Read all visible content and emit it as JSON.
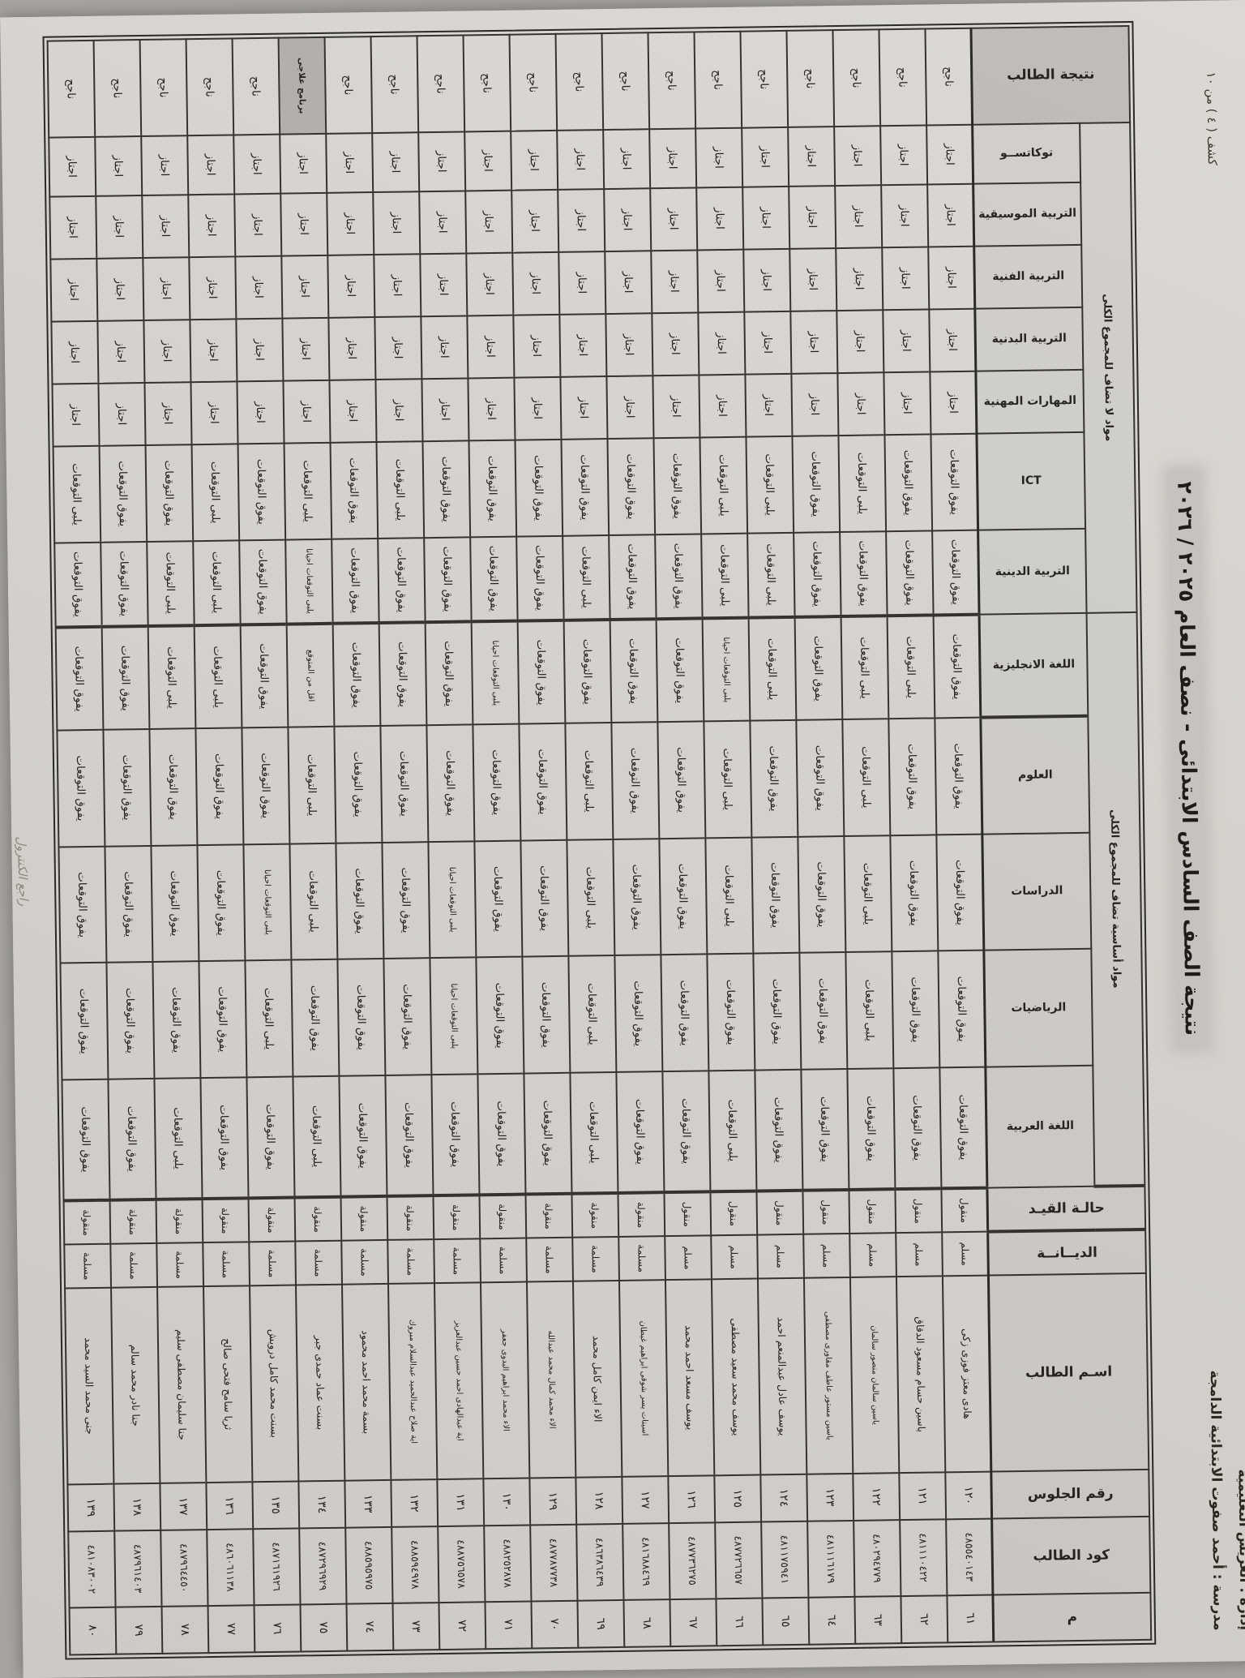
{
  "page": {
    "sheet_label": "كشف ( ٤ ) من ١٠",
    "admin_line": "إدارة : العريش التعليمية",
    "school_line": "مدرسة : أحمد صفوت الابتدائية الدامجة",
    "title": "نتيجة الصف السادس الابتدائى - نصف العام ٢٠٢٥ / ٢٠٢٦",
    "margin_note": "راجع الكنترول"
  },
  "table": {
    "groups": {
      "basic": "مواد أساسية تضاف للمجموع الكلى",
      "non_added": "مواد لا تضاف للمجموع الكلى"
    },
    "headers": {
      "m": "م",
      "code": "كود الطالب",
      "seat": "رقم الجلوس",
      "name": "اسـم الطالب",
      "religion": "الديــانــة",
      "status": "حالـة القيـد",
      "arabic": "اللغة العربية",
      "math": "الرياضيات",
      "studies": "الدراسات",
      "science": "العلوم",
      "english": "اللغة الانجليزية",
      "religious": "التربية الدينية",
      "ict": "ICT",
      "vocational": "المهارات المهنية",
      "physical": "التربية البدنية",
      "art": "التربية الفنية",
      "music": "التربية الموسيقية",
      "tokkatsu": "توكاتســو",
      "result": "نتيجة الطالب"
    }
  },
  "students": [
    {
      "m": "٦١",
      "code": "٤٨٥٥٤٠١٤٣",
      "seat": "١٢٠",
      "name": "هادى معتز فوزى زكى",
      "religion": "مسلم",
      "status": "منقول",
      "arabic": "يفوق التوقعات",
      "math": "يفوق التوقعات",
      "studies": "يفوق التوقعات",
      "science": "يفوق التوقعات",
      "english": "يفوق التوقعات",
      "religious": "يفوق التوقعات",
      "ict": "يفوق التوقعات",
      "vocational": "اجتاز",
      "physical": "اجتاز",
      "art": "اجتاز",
      "music": "اجتاز",
      "tokkatsu": "اجتاز",
      "result": "ناجح"
    },
    {
      "m": "٦٢",
      "code": "٤٨١١١٠٤٢٢",
      "seat": "١٢١",
      "name": "ياسين حسام مسعود الدقاق",
      "religion": "مسلم",
      "status": "منقول",
      "arabic": "يفوق التوقعات",
      "math": "يفوق التوقعات",
      "studies": "يفوق التوقعات",
      "science": "يفوق التوقعات",
      "english": "يلبى التوقعات",
      "religious": "يفوق التوقعات",
      "ict": "يفوق التوقعات",
      "vocational": "اجتاز",
      "physical": "اجتاز",
      "art": "اجتاز",
      "music": "اجتاز",
      "tokkatsu": "اجتاز",
      "result": "ناجح"
    },
    {
      "m": "٦٣",
      "code": "٤٨٠٢٩٤٧٧٩",
      "seat": "١٢٢",
      "name": "ياسين سالمان منصور سالمان",
      "religion": "مسلم",
      "status": "منقول",
      "arabic": "يفوق التوقعات",
      "math": "يلبى التوقعات",
      "studies": "يلبى التوقعات",
      "science": "يلبى التوقعات",
      "english": "يلبى التوقعات",
      "religious": "يفوق التوقعات",
      "ict": "يلبى التوقعات",
      "vocational": "اجتاز",
      "physical": "اجتاز",
      "art": "اجتاز",
      "music": "اجتاز",
      "tokkatsu": "اجتاز",
      "result": "ناجح"
    },
    {
      "m": "٦٤",
      "code": "٤٨١١١٦١٧٩",
      "seat": "١٢٣",
      "name": "ياسين مستور عاطف مقاورى مصطفى",
      "religion": "مسلم",
      "status": "منقول",
      "arabic": "يفوق التوقعات",
      "math": "يفوق التوقعات",
      "studies": "يفوق التوقعات",
      "science": "يفوق التوقعات",
      "english": "يفوق التوقعات",
      "religious": "يفوق التوقعات",
      "ict": "يفوق التوقعات",
      "vocational": "اجتاز",
      "physical": "اجتاز",
      "art": "اجتاز",
      "music": "اجتاز",
      "tokkatsu": "اجتاز",
      "result": "ناجح"
    },
    {
      "m": "٦٥",
      "code": "٤٨١١٧٥٩٤١",
      "seat": "١٢٤",
      "name": "يوسف عادل عبدالمنعم احمد",
      "religion": "مسلم",
      "status": "منقول",
      "arabic": "يفوق التوقعات",
      "math": "يفوق التوقعات",
      "studies": "يفوق التوقعات",
      "science": "يفوق التوقعات",
      "english": "يلبى التوقعات",
      "religious": "يلبى التوقعات",
      "ict": "يلبى التوقعات",
      "vocational": "اجتاز",
      "physical": "اجتاز",
      "art": "اجتاز",
      "music": "اجتاز",
      "tokkatsu": "اجتاز",
      "result": "ناجح"
    },
    {
      "m": "٦٦",
      "code": "٤٨٧٧٢٦٦٥٧",
      "seat": "١٢٥",
      "name": "يوسف محمد سعيد مصطفى",
      "religion": "مسلم",
      "status": "منقول",
      "arabic": "يلبى التوقعات",
      "math": "يفوق التوقعات",
      "studies": "يلبى التوقعات",
      "science": "يلبى التوقعات",
      "english": "يلبى التوقعات احيانا",
      "religious": "يلبى التوقعات",
      "ict": "يلبى التوقعات",
      "vocational": "اجتاز",
      "physical": "اجتاز",
      "art": "اجتاز",
      "music": "اجتاز",
      "tokkatsu": "اجتاز",
      "result": "ناجح"
    },
    {
      "m": "٦٧",
      "code": "٤٨٧٧٣٦٢٧٥",
      "seat": "١٢٦",
      "name": "يوسف مسعد احمد محمد",
      "religion": "مسلم",
      "status": "منقول",
      "arabic": "يفوق التوقعات",
      "math": "يفوق التوقعات",
      "studies": "يفوق التوقعات",
      "science": "يفوق التوقعات",
      "english": "يفوق التوقعات",
      "religious": "يفوق التوقعات",
      "ict": "يفوق التوقعات",
      "vocational": "اجتاز",
      "physical": "اجتاز",
      "art": "اجتاز",
      "music": "اجتاز",
      "tokkatsu": "اجتاز",
      "result": "ناجح"
    },
    {
      "m": "٦٨",
      "code": "٤٨١٦٨٨٤٦٩",
      "seat": "١٢٧",
      "name": "اسينات يسر شوقى ابراهيم غيطان",
      "religion": "مسلمة",
      "status": "منقولة",
      "arabic": "يفوق التوقعات",
      "math": "يفوق التوقعات",
      "studies": "يفوق التوقعات",
      "science": "يفوق التوقعات",
      "english": "يفوق التوقعات",
      "religious": "يفوق التوقعات",
      "ict": "يفوق التوقعات",
      "vocational": "اجتاز",
      "physical": "اجتاز",
      "art": "اجتاز",
      "music": "اجتاز",
      "tokkatsu": "اجتاز",
      "result": "ناجح"
    },
    {
      "m": "٦٩",
      "code": "٤٨٦٣٨٦٤٣٩",
      "seat": "١٢٨",
      "name": "الاء ايمن كامل محمد",
      "religion": "مسلمة",
      "status": "منقولة",
      "arabic": "يلبى التوقعات",
      "math": "يلبى التوقعات",
      "studies": "يلبى التوقعات",
      "science": "يلبى التوقعات",
      "english": "يفوق التوقعات",
      "religious": "يلبى التوقعات",
      "ict": "يفوق التوقعات",
      "vocational": "اجتاز",
      "physical": "اجتاز",
      "art": "اجتاز",
      "music": "اجتاز",
      "tokkatsu": "اجتاز",
      "result": "ناجح"
    },
    {
      "m": "٧٠",
      "code": "٤٨٧٧٨٧٧٣٨",
      "seat": "١٢٩",
      "name": "الاء محمد كمال محمد عبدالله",
      "religion": "مسلمة",
      "status": "منقولة",
      "arabic": "يفوق التوقعات",
      "math": "يفوق التوقعات",
      "studies": "يفوق التوقعات",
      "science": "يفوق التوقعات",
      "english": "يفوق التوقعات",
      "religious": "يفوق التوقعات",
      "ict": "يفوق التوقعات",
      "vocational": "اجتاز",
      "physical": "اجتاز",
      "art": "اجتاز",
      "music": "اجتاز",
      "tokkatsu": "اجتاز",
      "result": "ناجح"
    },
    {
      "m": "٧١",
      "code": "٤٨٨٢٥٢٨٧٨",
      "seat": "١٣٠",
      "name": "الاء محمد ابراهيم البدوى جعفر",
      "religion": "مسلمة",
      "status": "منقولة",
      "arabic": "يفوق التوقعات",
      "math": "يفوق التوقعات",
      "studies": "يفوق التوقعات",
      "science": "يفوق التوقعات",
      "english": "يلبى التوقعات احيانا",
      "religious": "يفوق التوقعات",
      "ict": "يفوق التوقعات",
      "vocational": "اجتاز",
      "physical": "اجتاز",
      "art": "اجتاز",
      "music": "اجتاز",
      "tokkatsu": "اجتاز",
      "result": "ناجح"
    },
    {
      "m": "٧٢",
      "code": "٤٨٨٧٥٦٥٧٨",
      "seat": "١٣١",
      "name": "اية عبدالهادى احمد حسين عبدالعزيز",
      "religion": "مسلمة",
      "status": "منقولة",
      "arabic": "يفوق التوقعات",
      "math": "يلبى التوقعات احيانا",
      "studies": "يلبى التوقعات احيانا",
      "science": "يفوق التوقعات",
      "english": "يفوق التوقعات",
      "religious": "يفوق التوقعات",
      "ict": "يفوق التوقعات",
      "vocational": "اجتاز",
      "physical": "اجتاز",
      "art": "اجتاز",
      "music": "اجتاز",
      "tokkatsu": "اجتاز",
      "result": "ناجح"
    },
    {
      "m": "٧٣",
      "code": "٤٨٨٥٩٤٩٧٨",
      "seat": "١٣٢",
      "name": "اية صلاح عبدالحميد عبدالسلام مبروك",
      "religion": "مسلمة",
      "status": "منقولة",
      "arabic": "يفوق التوقعات",
      "math": "يفوق التوقعات",
      "studies": "يفوق التوقعات",
      "science": "يفوق التوقعات",
      "english": "يفوق التوقعات",
      "religious": "يفوق التوقعات",
      "ict": "يلبى التوقعات",
      "vocational": "اجتاز",
      "physical": "اجتاز",
      "art": "اجتاز",
      "music": "اجتاز",
      "tokkatsu": "اجتاز",
      "result": "ناجح"
    },
    {
      "m": "٧٤",
      "code": "٤٨٨٥٩٥٩٧٥",
      "seat": "١٣٣",
      "name": "بسمة محمد احمد محمود",
      "religion": "مسلمة",
      "status": "منقولة",
      "arabic": "يفوق التوقعات",
      "math": "يفوق التوقعات",
      "studies": "يفوق التوقعات",
      "science": "يفوق التوقعات",
      "english": "يفوق التوقعات",
      "religious": "يفوق التوقعات",
      "ict": "يفوق التوقعات",
      "vocational": "اجتاز",
      "physical": "اجتاز",
      "art": "اجتاز",
      "music": "اجتاز",
      "tokkatsu": "اجتاز",
      "result": "ناجح"
    },
    {
      "m": "٧٥",
      "code": "٤٨٧٢٩٦٩٢٩",
      "seat": "١٣٤",
      "name": "بسنت عماد حمدى جبر",
      "religion": "مسلمة",
      "status": "منقولة",
      "arabic": "يلبى التوقعات",
      "math": "يفوق التوقعات",
      "studies": "يلبى التوقعات",
      "science": "يلبى التوقعات",
      "english": "اقل من المتوقع",
      "religious": "يلبى التوقعات احيانا",
      "ict": "يلبى التوقعات",
      "vocational": "اجتاز",
      "physical": "اجتاز",
      "art": "اجتاز",
      "music": "اجتاز",
      "tokkatsu": "اجتاز",
      "result": "برنامج علاجى"
    },
    {
      "m": "٧٦",
      "code": "٤٨٧١٦١٩٢٦",
      "seat": "١٣٥",
      "name": "بسنت محمد كامل درويش",
      "religion": "مسلمة",
      "status": "منقولة",
      "arabic": "يفوق التوقعات",
      "math": "يلبى التوقعات",
      "studies": "يلبى التوقعات احيانا",
      "science": "يفوق التوقعات",
      "english": "يفوق التوقعات",
      "religious": "يفوق التوقعات",
      "ict": "يفوق التوقعات",
      "vocational": "اجتاز",
      "physical": "اجتاز",
      "art": "اجتاز",
      "music": "اجتاز",
      "tokkatsu": "اجتاز",
      "result": "ناجح"
    },
    {
      "m": "٧٧",
      "code": "٤٨٦٠٦١١٣٨",
      "seat": "١٣٦",
      "name": "ثريا سامح فتحى صالح",
      "religion": "مسلمة",
      "status": "منقولة",
      "arabic": "يفوق التوقعات",
      "math": "يفوق التوقعات",
      "studies": "يفوق التوقعات",
      "science": "يفوق التوقعات",
      "english": "يلبى التوقعات",
      "religious": "يلبى التوقعات",
      "ict": "يلبى التوقعات",
      "vocational": "اجتاز",
      "physical": "اجتاز",
      "art": "اجتاز",
      "music": "اجتاز",
      "tokkatsu": "اجتاز",
      "result": "ناجح"
    },
    {
      "m": "٧٨",
      "code": "٤٨٧٩٦٤٤٥٠",
      "seat": "١٣٧",
      "name": "جنا سليمان مصطفى سليم",
      "religion": "مسلمة",
      "status": "منقولة",
      "arabic": "يلبى التوقعات",
      "math": "يفوق التوقعات",
      "studies": "يفوق التوقعات",
      "science": "يفوق التوقعات",
      "english": "يلبى التوقعات",
      "religious": "يلبى التوقعات",
      "ict": "يفوق التوقعات",
      "vocational": "اجتاز",
      "physical": "اجتاز",
      "art": "اجتاز",
      "music": "اجتاز",
      "tokkatsu": "اجتاز",
      "result": "ناجح"
    },
    {
      "m": "٧٩",
      "code": "٤٨٧٩٦١٤٠٣",
      "seat": "١٣٨",
      "name": "جنا نادر محمد سالم",
      "religion": "مسلمة",
      "status": "منقولة",
      "arabic": "يفوق التوقعات",
      "math": "يفوق التوقعات",
      "studies": "يفوق التوقعات",
      "science": "يفوق التوقعات",
      "english": "يفوق التوقعات",
      "religious": "يفوق التوقعات",
      "ict": "يفوق التوقعات",
      "vocational": "اجتاز",
      "physical": "اجتاز",
      "art": "اجتاز",
      "music": "اجتاز",
      "tokkatsu": "اجتاز",
      "result": "ناجح"
    },
    {
      "m": "٨٠",
      "code": "٤٨١٠٨٣٠٠٢",
      "seat": "١٣٩",
      "name": "جنى محمد السيد محمد",
      "religion": "مسلمة",
      "status": "منقولة",
      "arabic": "يفوق التوقعات",
      "math": "يفوق التوقعات",
      "studies": "يفوق التوقعات",
      "science": "يفوق التوقعات",
      "english": "يفوق التوقعات",
      "religious": "يفوق التوقعات",
      "ict": "يلبى التوقعات",
      "vocational": "اجتاز",
      "physical": "اجتاز",
      "art": "اجتاز",
      "music": "اجتاز",
      "tokkatsu": "اجتاز",
      "result": "ناجح"
    }
  ]
}
